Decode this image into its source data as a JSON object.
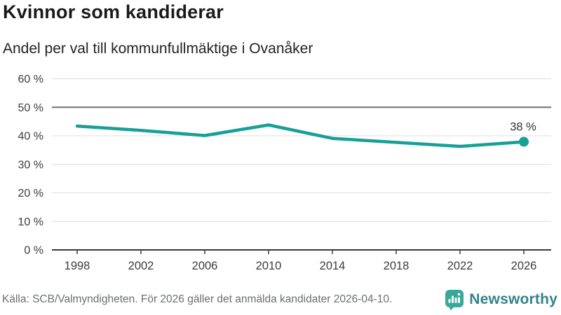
{
  "header": {
    "title": "Kvinnor som kandiderar",
    "subtitle": "Andel per val till kommunfullmäktige i Ovanåker"
  },
  "chart_data": {
    "type": "line",
    "title": "Kvinnor som kandiderar",
    "subtitle": "Andel per val till kommunfullmäktige i Ovanåker",
    "categories": [
      "1998",
      "2002",
      "2006",
      "2010",
      "2014",
      "2018",
      "2022",
      "2026"
    ],
    "values": [
      43.4,
      41.9,
      40.1,
      43.8,
      39.1,
      37.7,
      36.3,
      37.9
    ],
    "unit": "%",
    "xlabel": "",
    "ylabel": "",
    "ylim": [
      0,
      60
    ],
    "y_ticks": [
      0,
      10,
      20,
      30,
      40,
      50,
      60
    ],
    "y_tick_labels": [
      "0 %",
      "10 %",
      "20 %",
      "30 %",
      "40 %",
      "50 %",
      "60 %"
    ],
    "grid": true,
    "reference_line": 50,
    "legend_position": "none",
    "end_point_label": "38 %"
  },
  "colors": {
    "accent_line": "#16a096",
    "grid_light": "#dcdcdc",
    "reference_gray": "#6f6f6f",
    "axis_dark": "#3a3a3a",
    "tick_text": "#3c3c3c",
    "logo_bubble": "#3aa79b",
    "logo_text": "#35838a"
  },
  "footer": {
    "source": "Källa: SCB/Valmyndigheten. För 2026 gäller det anmälda kandidater 2026-04-10.",
    "brand": "Newsworthy"
  }
}
